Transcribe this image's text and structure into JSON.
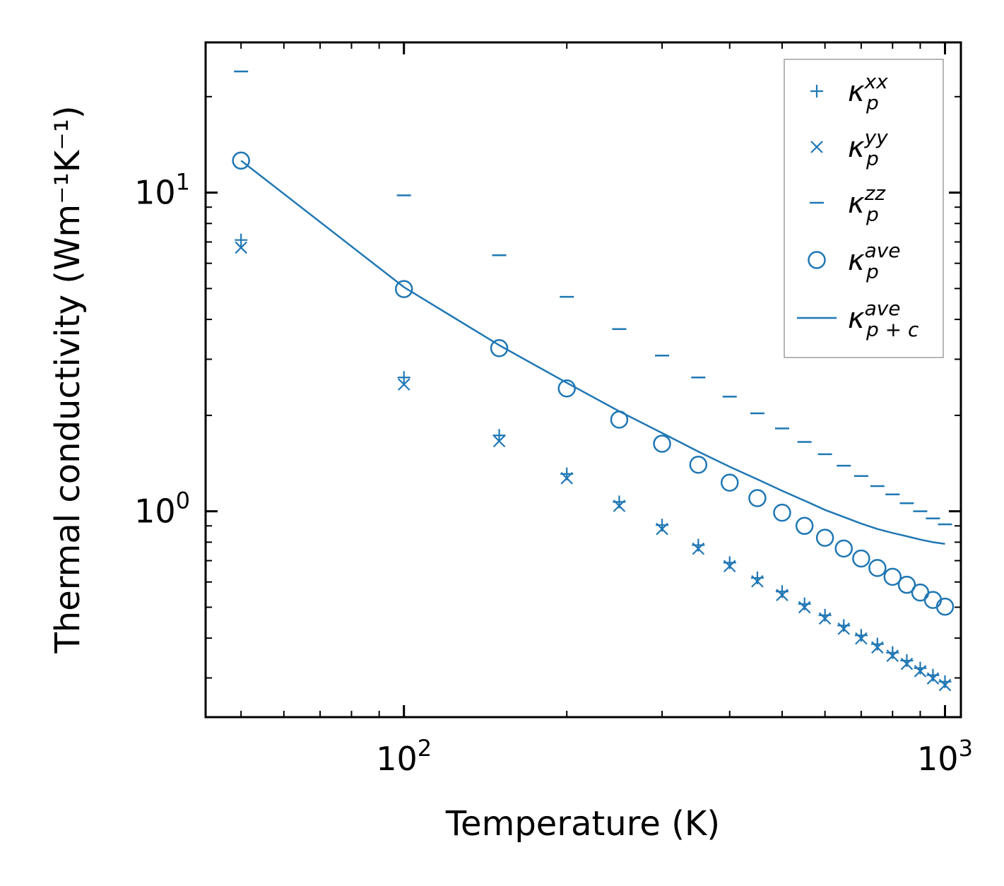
{
  "chart_data": {
    "type": "scatter",
    "xscale": "log",
    "yscale": "log",
    "xlabel": "Temperature (K)",
    "ylabel": "Thermal conductivity (Wm⁻¹K⁻¹)",
    "xlim": [
      43,
      1070
    ],
    "ylim": [
      0.226,
      29.6
    ],
    "x_ticks": [
      {
        "value": 100,
        "base": "10",
        "exp": "2"
      },
      {
        "value": 1000,
        "base": "10",
        "exp": "3"
      }
    ],
    "y_ticks": [
      {
        "value": 1,
        "base": "10",
        "exp": "0"
      },
      {
        "value": 10,
        "base": "10",
        "exp": "1"
      }
    ],
    "color": "#1f77b4",
    "x": [
      50,
      100,
      150,
      200,
      250,
      300,
      350,
      400,
      450,
      500,
      550,
      600,
      650,
      700,
      750,
      800,
      850,
      900,
      950,
      1000
    ],
    "series": [
      {
        "name": "kxx",
        "marker": "plus",
        "legend": {
          "base": "κ",
          "sub": "p",
          "sup": "xx"
        },
        "values": [
          7.1,
          2.63,
          1.73,
          1.31,
          1.07,
          0.905,
          0.783,
          0.69,
          0.618,
          0.56,
          0.512,
          0.472,
          0.438,
          0.408,
          0.383,
          0.36,
          0.34,
          0.322,
          0.306,
          0.292
        ]
      },
      {
        "name": "kyy",
        "marker": "x",
        "legend": {
          "base": "κ",
          "sub": "p",
          "sup": "yy"
        },
        "values": [
          6.72,
          2.5,
          1.66,
          1.27,
          1.04,
          0.88,
          0.763,
          0.673,
          0.603,
          0.546,
          0.5,
          0.461,
          0.428,
          0.399,
          0.374,
          0.352,
          0.332,
          0.315,
          0.299,
          0.285
        ]
      },
      {
        "name": "kzz",
        "marker": "hline",
        "legend": {
          "base": "κ",
          "sub": "p",
          "sup": "zz"
        },
        "values": [
          24.0,
          9.8,
          6.36,
          4.71,
          3.73,
          3.08,
          2.63,
          2.29,
          2.03,
          1.82,
          1.65,
          1.51,
          1.39,
          1.29,
          1.2,
          1.13,
          1.06,
          1.0,
          0.95,
          0.91
        ]
      },
      {
        "name": "kave",
        "marker": "circle",
        "legend": {
          "base": "κ",
          "sub": "p",
          "sup": "ave"
        },
        "values": [
          12.6,
          4.98,
          3.25,
          2.43,
          1.94,
          1.63,
          1.4,
          1.23,
          1.1,
          0.99,
          0.9,
          0.826,
          0.764,
          0.711,
          0.664,
          0.623,
          0.588,
          0.556,
          0.527,
          0.502
        ]
      },
      {
        "name": "kave_pc",
        "marker": "line",
        "legend": {
          "base": "κ",
          "sub": "p + c",
          "sup": "ave"
        },
        "values": [
          12.6,
          5.05,
          3.32,
          2.53,
          2.06,
          1.76,
          1.54,
          1.38,
          1.26,
          1.16,
          1.08,
          1.01,
          0.96,
          0.915,
          0.88,
          0.855,
          0.835,
          0.815,
          0.8,
          0.79
        ]
      }
    ]
  }
}
